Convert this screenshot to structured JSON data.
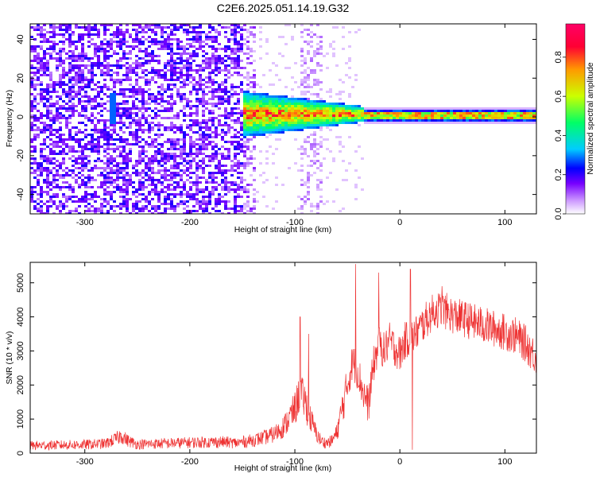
{
  "title": "C2E6.2025.051.14.19.G32",
  "chart_data": [
    {
      "type": "heatmap",
      "xlabel": "Height of straight line (km)",
      "ylabel": "Frequency (Hz)",
      "xlim": [
        -352,
        130
      ],
      "ylim": [
        -50,
        48
      ],
      "xticks": [
        -300,
        -200,
        -100,
        0,
        100
      ],
      "yticks": [
        -40,
        -20,
        0,
        20,
        40
      ],
      "colorbar": {
        "label": "Normalized spectral amplitude",
        "range": [
          0,
          0.97
        ],
        "ticks": [
          0.0,
          0.2,
          0.4,
          0.6,
          0.8
        ],
        "tick_labels": [
          "0.0",
          "0.2",
          "0.4",
          "0.6",
          "0.8"
        ],
        "colors": [
          "#ffffff",
          "#cc99ff",
          "#7700ff",
          "#0000ff",
          "#00ccff",
          "#00ff66",
          "#ccff00",
          "#ff9900",
          "#ff0033",
          "#ff0066"
        ]
      },
      "description_regions": [
        {
          "x_range": [
            -352,
            -150
          ],
          "y_range": [
            -50,
            48
          ],
          "level": 0.15,
          "pattern": "dense speckle"
        },
        {
          "x_range": [
            -150,
            -35
          ],
          "y_range": [
            -12,
            10
          ],
          "level": 0.5,
          "pattern": "carrier band, converging"
        },
        {
          "x_range": [
            -35,
            130
          ],
          "y_range": [
            0,
            3
          ],
          "level": 0.6,
          "pattern": "stable carrier line"
        }
      ]
    },
    {
      "type": "line",
      "xlabel": "Height of straight line (km)",
      "ylabel": "SNR (10 * v/v)",
      "xlim": [
        -352,
        130
      ],
      "ylim": [
        0,
        5600
      ],
      "xticks": [
        -300,
        -200,
        -100,
        0,
        100
      ],
      "yticks": [
        0,
        1000,
        2000,
        3000,
        4000,
        5000
      ],
      "color": "#ee3333",
      "x": [
        -352,
        -340,
        -320,
        -300,
        -280,
        -270,
        -265,
        -260,
        -250,
        -230,
        -210,
        -190,
        -170,
        -155,
        -140,
        -130,
        -120,
        -110,
        -100,
        -95,
        -90,
        -85,
        -80,
        -75,
        -70,
        -65,
        -60,
        -55,
        -50,
        -45,
        -40,
        -35,
        -30,
        -25,
        -20,
        -15,
        -10,
        -5,
        0,
        5,
        10,
        15,
        20,
        25,
        30,
        35,
        40,
        45,
        50,
        60,
        70,
        80,
        90,
        100,
        110,
        120,
        130
      ],
      "y": [
        220,
        230,
        240,
        250,
        280,
        420,
        520,
        380,
        260,
        280,
        300,
        320,
        330,
        300,
        380,
        450,
        550,
        800,
        1300,
        1800,
        1500,
        1000,
        600,
        350,
        300,
        350,
        600,
        1300,
        2000,
        2700,
        2400,
        1800,
        1400,
        2600,
        3200,
        3000,
        3300,
        3100,
        2900,
        3300,
        3400,
        3500,
        3700,
        3900,
        4100,
        4200,
        4200,
        4150,
        4050,
        3950,
        3850,
        3750,
        3650,
        3550,
        3450,
        3200,
        2800
      ],
      "envelope": 550,
      "spikes": [
        {
          "x": -95,
          "y": 4000
        },
        {
          "x": -87,
          "y": 3500
        },
        {
          "x": -42,
          "y": 5550
        },
        {
          "x": -20,
          "y": 5300
        },
        {
          "x": 10,
          "y": 5400
        },
        {
          "x": 12,
          "y": 100
        },
        {
          "x": 40,
          "y": 4900
        }
      ]
    }
  ]
}
